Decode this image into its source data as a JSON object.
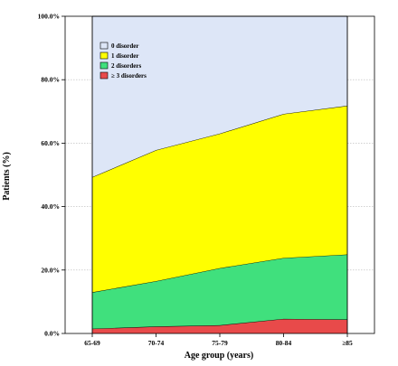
{
  "chart_data": {
    "type": "area",
    "stacked": true,
    "categories": [
      "65-69",
      "70-74",
      "75-79",
      "80-84",
      "≥85"
    ],
    "series": [
      {
        "name": "≥ 3 disorders",
        "values": [
          1.5,
          2.2,
          2.6,
          4.6,
          4.4
        ],
        "color": "#e84a4a"
      },
      {
        "name": "2 disorders",
        "values": [
          11.5,
          14.3,
          18.0,
          19.2,
          20.5
        ],
        "color": "#40e07d"
      },
      {
        "name": "1 disorder",
        "values": [
          36.3,
          41.3,
          42.4,
          45.4,
          46.9
        ],
        "color": "#ffff00"
      },
      {
        "name": "0 disorder",
        "values": [
          50.7,
          42.2,
          37.0,
          30.8,
          28.2
        ],
        "color": "#dde6f7"
      }
    ],
    "legend_order": [
      "0 disorder",
      "1 disorder",
      "2 disorders",
      "≥ 3 disorders"
    ],
    "xlabel": "Age group (years)",
    "ylabel": "Patients (%)",
    "ylim": [
      0,
      100
    ],
    "yticks": [
      "0.0%",
      "20.0%",
      "40.0%",
      "60.0%",
      "80.0%",
      "100.0%"
    ],
    "ytick_values": [
      0,
      20,
      40,
      60,
      80,
      100
    ],
    "grid": true,
    "legend_position": "top-left inside plot"
  }
}
